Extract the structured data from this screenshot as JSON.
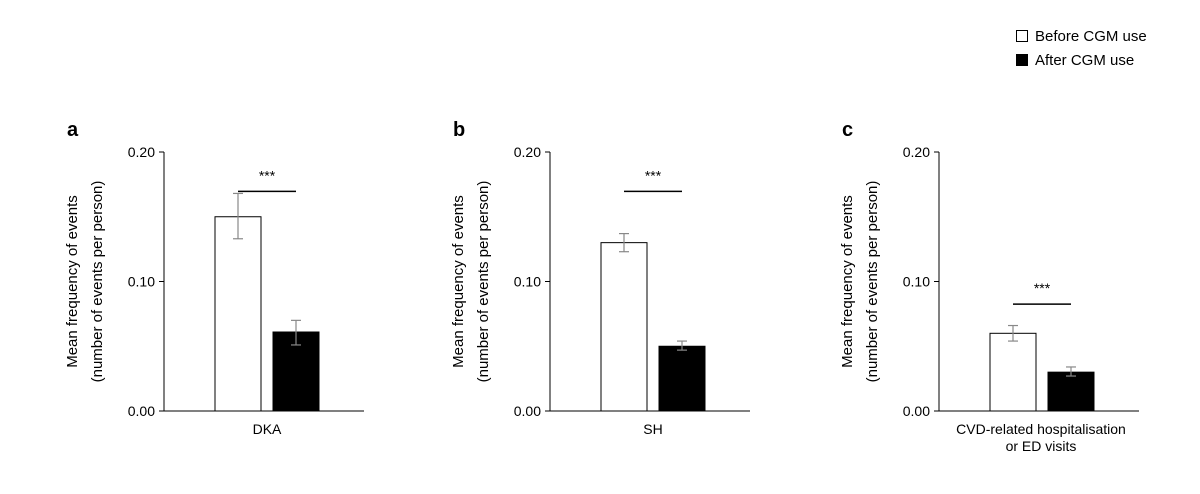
{
  "legend": [
    {
      "label": "Before CGM use",
      "color": "#ffffff"
    },
    {
      "label": "After CGM use",
      "color": "#000000"
    }
  ],
  "colors": {
    "axis": "#000000",
    "error_bar": "#888888",
    "bar_outline": "#000000"
  },
  "chart_data": [
    {
      "type": "bar",
      "panel_label": "a",
      "ylabel_line1": "Mean frequency of events",
      "ylabel_line2": "(number of events per person)",
      "ylim": [
        0,
        0.2
      ],
      "yticks": [
        "0.00",
        "0.10",
        "0.20"
      ],
      "categories": [
        "DKA"
      ],
      "category_lines": [
        "DKA"
      ],
      "series": [
        {
          "name": "Before CGM use",
          "values": [
            0.15
          ],
          "err_low": [
            0.133
          ],
          "err_high": [
            0.168
          ]
        },
        {
          "name": "After CGM use",
          "values": [
            0.061
          ],
          "err_low": [
            0.051
          ],
          "err_high": [
            0.07
          ]
        }
      ],
      "significance": {
        "label": "***",
        "y": 0.185
      }
    },
    {
      "type": "bar",
      "panel_label": "b",
      "ylabel_line1": "Mean frequency of events",
      "ylabel_line2": "(number of events per person)",
      "ylim": [
        0,
        0.2
      ],
      "yticks": [
        "0.00",
        "0.10",
        "0.20"
      ],
      "categories": [
        "SH"
      ],
      "category_lines": [
        "SH"
      ],
      "series": [
        {
          "name": "Before CGM use",
          "values": [
            0.13
          ],
          "err_low": [
            0.123
          ],
          "err_high": [
            0.137
          ]
        },
        {
          "name": "After CGM use",
          "values": [
            0.05
          ],
          "err_low": [
            0.047
          ],
          "err_high": [
            0.054
          ]
        }
      ],
      "significance": {
        "label": "***",
        "y": 0.185
      }
    },
    {
      "type": "bar",
      "panel_label": "c",
      "ylabel_line1": "Mean frequency of events",
      "ylabel_line2": "(number of events per person)",
      "ylim": [
        0,
        0.2
      ],
      "yticks": [
        "0.00",
        "0.10",
        "0.20"
      ],
      "categories": [
        "CVD-related hospitalisation or ED visits"
      ],
      "category_lines": [
        "CVD-related hospitalisation",
        "or ED visits"
      ],
      "series": [
        {
          "name": "Before CGM use",
          "values": [
            0.06
          ],
          "err_low": [
            0.054
          ],
          "err_high": [
            0.066
          ]
        },
        {
          "name": "After CGM use",
          "values": [
            0.03
          ],
          "err_low": [
            0.027
          ],
          "err_high": [
            0.034
          ]
        }
      ],
      "significance": {
        "label": "***",
        "y": 0.098
      }
    }
  ]
}
